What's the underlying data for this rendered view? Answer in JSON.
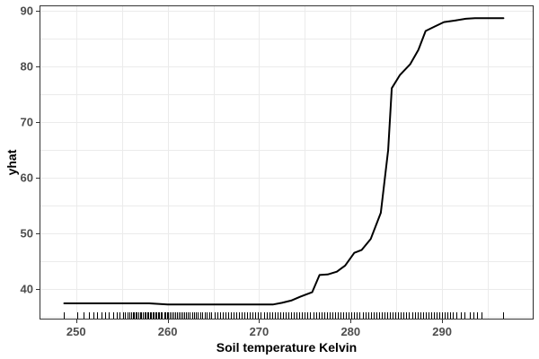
{
  "chart_data": {
    "type": "line",
    "xlabel": "Soil temperature Kelvin",
    "ylabel": "yhat",
    "xlim": [
      246,
      300
    ],
    "ylim": [
      34.5,
      91
    ],
    "x_ticks": [
      250,
      260,
      270,
      280,
      290
    ],
    "y_ticks": [
      40,
      50,
      60,
      70,
      80,
      90
    ],
    "grid": true,
    "legend": "none",
    "series": [
      {
        "points": [
          [
            248.7,
            37.4
          ],
          [
            250,
            37.4
          ],
          [
            255,
            37.4
          ],
          [
            258,
            37.4
          ],
          [
            260,
            37.2
          ],
          [
            265,
            37.2
          ],
          [
            270,
            37.2
          ],
          [
            271.5,
            37.2
          ],
          [
            272.5,
            37.5
          ],
          [
            273.5,
            37.9
          ],
          [
            274.5,
            38.6
          ],
          [
            275.8,
            39.4
          ],
          [
            276.6,
            42.5
          ],
          [
            277.5,
            42.6
          ],
          [
            278.5,
            43.1
          ],
          [
            279.4,
            44.2
          ],
          [
            280.4,
            46.5
          ],
          [
            281.2,
            47.0
          ],
          [
            282.2,
            49.0
          ],
          [
            283.3,
            53.7
          ],
          [
            284.1,
            65.0
          ],
          [
            284.5,
            76.1
          ],
          [
            285.4,
            78.5
          ],
          [
            286.5,
            80.4
          ],
          [
            287.4,
            83.0
          ],
          [
            288.2,
            86.4
          ],
          [
            289.2,
            87.2
          ],
          [
            290.2,
            88.0
          ],
          [
            291.5,
            88.3
          ],
          [
            292.6,
            88.6
          ],
          [
            293.6,
            88.7
          ],
          [
            295.0,
            88.7
          ],
          [
            296.7,
            88.7
          ]
        ]
      }
    ],
    "rug_x": [
      248.7,
      250.1,
      250.8,
      251.4,
      251.9,
      252.3,
      252.8,
      253.2,
      253.6,
      254.1,
      254.4,
      254.7,
      255.1,
      255.3,
      255.6,
      255.8,
      256.0,
      256.2,
      256.3,
      256.5,
      256.6,
      256.8,
      257.0,
      257.1,
      257.3,
      257.5,
      257.6,
      257.8,
      257.9,
      258.1,
      258.2,
      258.4,
      258.5,
      258.7,
      258.8,
      259.0,
      259.1,
      259.3,
      259.4,
      259.6,
      259.7,
      259.9,
      260.0,
      260.2,
      260.4,
      260.6,
      260.8,
      261.0,
      261.2,
      261.4,
      261.6,
      261.8,
      262.0,
      262.2,
      262.4,
      262.7,
      262.9,
      263.1,
      263.3,
      263.6,
      263.8,
      264.1,
      264.3,
      264.6,
      264.8,
      265.1,
      265.4,
      265.7,
      266.0,
      266.3,
      266.6,
      266.9,
      267.2,
      267.5,
      267.8,
      268.1,
      268.4,
      268.7,
      269.0,
      269.3,
      269.6,
      269.9,
      270.2,
      270.5,
      270.8,
      271.1,
      271.4,
      271.7,
      272.0,
      272.3,
      272.6,
      272.9,
      273.2,
      273.5,
      273.8,
      274.1,
      274.4,
      274.7,
      275.0,
      275.3,
      275.6,
      275.9,
      276.2,
      276.5,
      276.8,
      277.1,
      277.4,
      277.7,
      278.0,
      278.3,
      278.6,
      278.9,
      279.2,
      279.5,
      279.8,
      280.1,
      280.4,
      280.7,
      281.0,
      281.3,
      281.6,
      281.9,
      282.2,
      282.5,
      282.8,
      283.1,
      283.4,
      283.7,
      284.0,
      284.3,
      284.6,
      284.9,
      285.2,
      285.5,
      285.8,
      286.1,
      286.4,
      286.7,
      287.0,
      287.3,
      287.6,
      287.9,
      288.2,
      288.5,
      288.8,
      289.1,
      289.4,
      289.7,
      290.0,
      290.3,
      290.6,
      290.9,
      291.2,
      291.6,
      292.0,
      292.4,
      293.0,
      293.4,
      293.8,
      294.3,
      296.7
    ]
  }
}
